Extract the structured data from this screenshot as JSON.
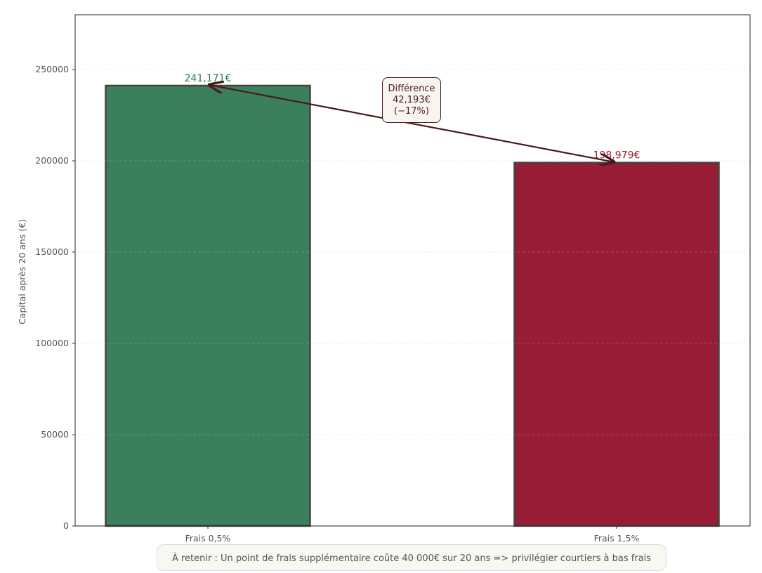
{
  "chart_data": {
    "type": "bar",
    "categories": [
      "Frais 0,5%",
      "Frais 1,5%"
    ],
    "values": [
      241171,
      198979
    ],
    "data_labels": [
      "241,171€",
      "198,979€"
    ],
    "colors": [
      "#3a805c",
      "#971d36"
    ],
    "label_colors": [
      "#2e7d55",
      "#971d36"
    ],
    "xlabel": "",
    "ylabel": "Capital après 20 ans (€)",
    "ylim": [
      0,
      280000
    ],
    "yticks": [
      0,
      50000,
      100000,
      150000,
      200000,
      250000
    ],
    "grid": true,
    "annotation": {
      "line1": "Différence",
      "line2": "42,193€",
      "line3": "(−17%)",
      "color": "#4a1a1a"
    },
    "footnote": "À retenir : Un point de frais supplémentaire coûte 40 000€ sur 20 ans => privilégier courtiers à bas frais"
  }
}
